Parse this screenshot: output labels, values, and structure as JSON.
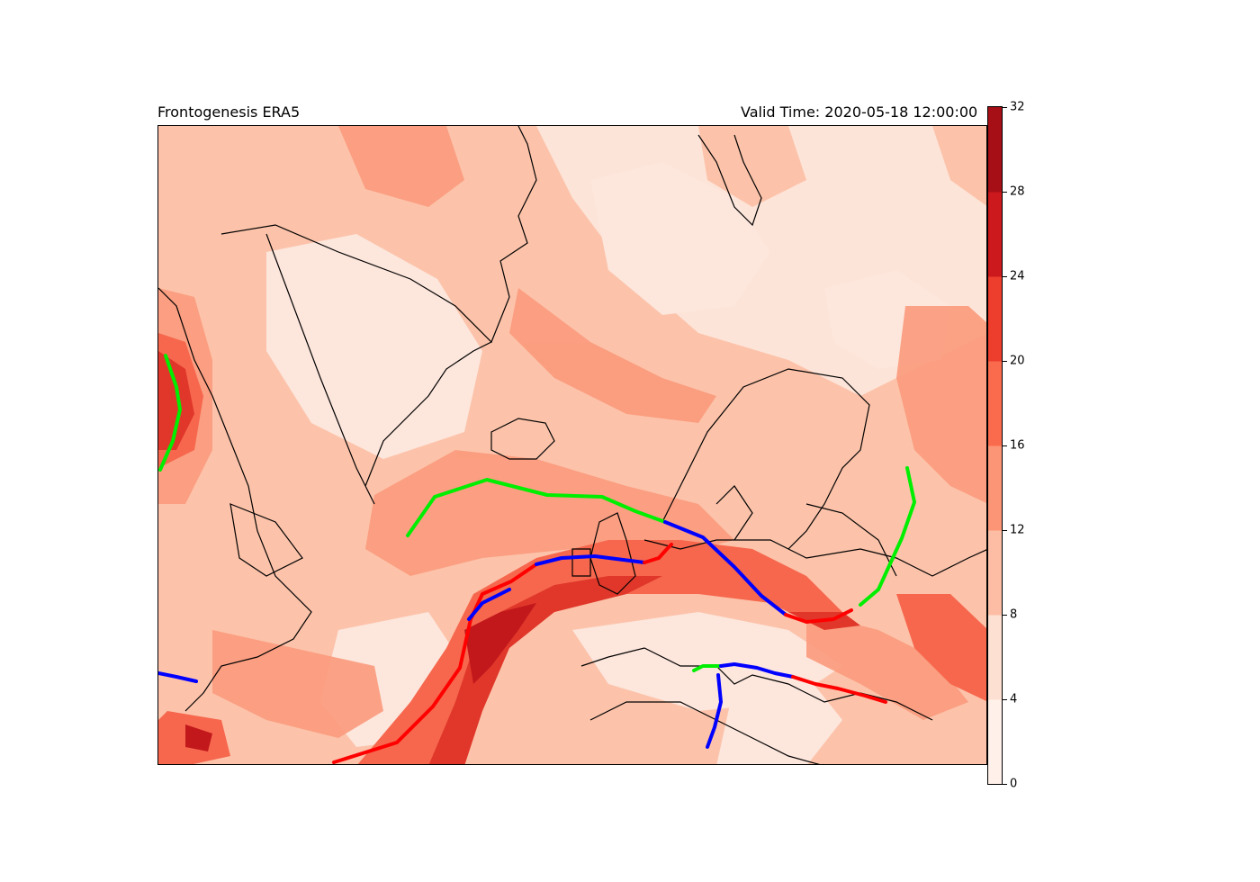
{
  "title_left": "Frontogenesis ERA5",
  "title_right": "Valid Time: 2020-05-18 12:00:00",
  "colorbar": {
    "ticks": [
      "0",
      "4",
      "8",
      "12",
      "16",
      "20",
      "24",
      "28",
      "32"
    ],
    "levels": [
      0,
      4,
      8,
      12,
      16,
      20,
      24,
      28,
      32
    ],
    "colors": [
      "#fff5f0",
      "#fee0d2",
      "#fcbba1",
      "#fc9272",
      "#fb6a4a",
      "#ef3b2c",
      "#cb181d",
      "#a50f15",
      "#67000d"
    ]
  },
  "front_colors": {
    "cold": "#0000ff",
    "warm": "#ff0000",
    "other": "#00ee00"
  },
  "coastline_color": "#000000"
}
